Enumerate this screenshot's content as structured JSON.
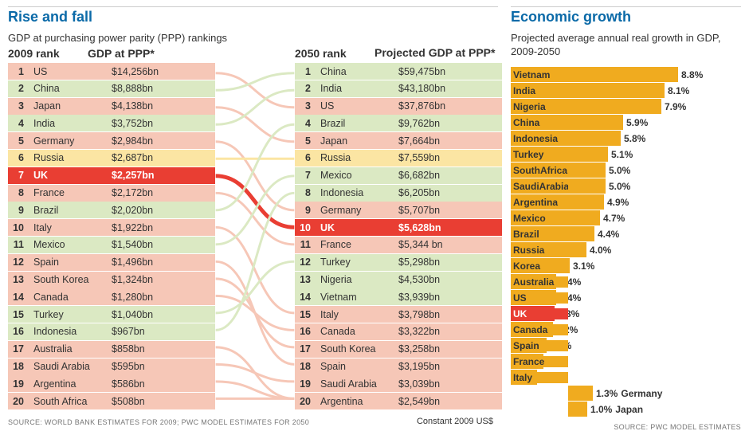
{
  "colors": {
    "pink": "#f6c7b7",
    "green": "#dbe9c3",
    "yellow": "#fbe5a3",
    "red": "#e93e33",
    "orange": "#f0ab1f",
    "title": "#0b6aa8",
    "text": "#333333"
  },
  "left": {
    "title": "Rise and fall",
    "subtitle": "GDP at purchasing power parity (PPP) rankings",
    "head2009_rank": "2009 rank",
    "head2009_gdp": "GDP at PPP*",
    "head2050_rank": "2050 rank",
    "head2050_gdp": "Projected GDP at PPP*",
    "footnote": "SOURCE: WORLD BANK ESTIMATES FOR 2009; PWC MODEL ESTIMATES FOR 2050",
    "constant": "Constant 2009 US$",
    "rows2009": [
      {
        "rank": 1,
        "country": "US",
        "gdp": "$14,256bn",
        "color": "pink",
        "to": 3
      },
      {
        "rank": 2,
        "country": "China",
        "gdp": "$8,888bn",
        "color": "green",
        "to": 1
      },
      {
        "rank": 3,
        "country": "Japan",
        "gdp": "$4,138bn",
        "color": "pink",
        "to": 5
      },
      {
        "rank": 4,
        "country": "India",
        "gdp": "$3,752bn",
        "color": "green",
        "to": 2
      },
      {
        "rank": 5,
        "country": "Germany",
        "gdp": "$2,984bn",
        "color": "pink",
        "to": 9
      },
      {
        "rank": 6,
        "country": "Russia",
        "gdp": "$2,687bn",
        "color": "yellow",
        "to": 6
      },
      {
        "rank": 7,
        "country": "UK",
        "gdp": "$2,257bn",
        "color": "red",
        "to": 10,
        "uk": true
      },
      {
        "rank": 8,
        "country": "France",
        "gdp": "$2,172bn",
        "color": "pink",
        "to": 11
      },
      {
        "rank": 9,
        "country": "Brazil",
        "gdp": "$2,020bn",
        "color": "green",
        "to": 4
      },
      {
        "rank": 10,
        "country": "Italy",
        "gdp": "$1,922bn",
        "color": "pink",
        "to": 15
      },
      {
        "rank": 11,
        "country": "Mexico",
        "gdp": "$1,540bn",
        "color": "green",
        "to": 7
      },
      {
        "rank": 12,
        "country": "Spain",
        "gdp": "$1,496bn",
        "color": "pink",
        "to": 18
      },
      {
        "rank": 13,
        "country": "South Korea",
        "gdp": "$1,324bn",
        "color": "pink",
        "to": 17
      },
      {
        "rank": 14,
        "country": "Canada",
        "gdp": "$1,280bn",
        "color": "pink",
        "to": 16
      },
      {
        "rank": 15,
        "country": "Turkey",
        "gdp": "$1,040bn",
        "color": "green",
        "to": 12
      },
      {
        "rank": 16,
        "country": "Indonesia",
        "gdp": "$967bn",
        "color": "green",
        "to": 8
      },
      {
        "rank": 17,
        "country": "Australia",
        "gdp": "$858bn",
        "color": "pink",
        "to": 20
      },
      {
        "rank": 18,
        "country": "Saudi Arabia",
        "gdp": "$595bn",
        "color": "pink",
        "to": 19
      },
      {
        "rank": 19,
        "country": "Argentina",
        "gdp": "$586bn",
        "color": "pink",
        "to": 20
      },
      {
        "rank": 20,
        "country": "South Africa",
        "gdp": "$508bn",
        "color": "pink",
        "to": 20
      }
    ],
    "rows2050": [
      {
        "rank": 1,
        "country": "China",
        "gdp": "$59,475bn",
        "color": "green"
      },
      {
        "rank": 2,
        "country": "India",
        "gdp": "$43,180bn",
        "color": "green"
      },
      {
        "rank": 3,
        "country": "US",
        "gdp": "$37,876bn",
        "color": "pink"
      },
      {
        "rank": 4,
        "country": "Brazil",
        "gdp": "$9,762bn",
        "color": "green"
      },
      {
        "rank": 5,
        "country": "Japan",
        "gdp": "$7,664bn",
        "color": "pink"
      },
      {
        "rank": 6,
        "country": "Russia",
        "gdp": "$7,559bn",
        "color": "yellow"
      },
      {
        "rank": 7,
        "country": "Mexico",
        "gdp": "$6,682bn",
        "color": "green"
      },
      {
        "rank": 8,
        "country": "Indonesia",
        "gdp": "$6,205bn",
        "color": "green"
      },
      {
        "rank": 9,
        "country": "Germany",
        "gdp": "$5,707bn",
        "color": "pink"
      },
      {
        "rank": 10,
        "country": "UK",
        "gdp": "$5,628bn",
        "color": "red",
        "uk": true
      },
      {
        "rank": 11,
        "country": "France",
        "gdp": "$5,344 bn",
        "color": "pink"
      },
      {
        "rank": 12,
        "country": "Turkey",
        "gdp": "$5,298bn",
        "color": "green"
      },
      {
        "rank": 13,
        "country": "Nigeria",
        "gdp": "$4,530bn",
        "color": "green"
      },
      {
        "rank": 14,
        "country": "Vietnam",
        "gdp": "$3,939bn",
        "color": "green"
      },
      {
        "rank": 15,
        "country": "Italy",
        "gdp": "$3,798bn",
        "color": "pink"
      },
      {
        "rank": 16,
        "country": "Canada",
        "gdp": "$3,322bn",
        "color": "pink"
      },
      {
        "rank": 17,
        "country": "South Korea",
        "gdp": "$3,258bn",
        "color": "pink"
      },
      {
        "rank": 18,
        "country": "Spain",
        "gdp": "$3,195bn",
        "color": "pink"
      },
      {
        "rank": 19,
        "country": "Saudi Arabia",
        "gdp": "$3,039bn",
        "color": "pink"
      },
      {
        "rank": 20,
        "country": "Argentina",
        "gdp": "$2,549bn",
        "color": "pink"
      }
    ]
  },
  "right": {
    "title": "Economic growth",
    "subtitle": "Projected average annual real growth in GDP, 2009-2050",
    "footnote": "SOURCE: PWC MODEL ESTIMATES",
    "max": 8.8,
    "rows": [
      {
        "country": "Vietnam",
        "value": 8.8,
        "label": "8.8%",
        "color": "orange"
      },
      {
        "country": "India",
        "value": 8.1,
        "label": "8.1%",
        "color": "orange"
      },
      {
        "country": "Nigeria",
        "value": 7.9,
        "label": "7.9%",
        "color": "orange"
      },
      {
        "country": "China",
        "value": 5.9,
        "label": "5.9%",
        "color": "orange"
      },
      {
        "country": "Indonesia",
        "value": 5.8,
        "label": "5.8%",
        "color": "orange"
      },
      {
        "country": "Turkey",
        "value": 5.1,
        "label": "5.1%",
        "color": "orange"
      },
      {
        "country": "SouthAfrica",
        "value": 5.0,
        "label": "5.0%",
        "color": "orange"
      },
      {
        "country": "SaudiArabia",
        "value": 5.0,
        "label": "5.0%",
        "color": "orange"
      },
      {
        "country": "Argentina",
        "value": 4.9,
        "label": "4.9%",
        "color": "orange"
      },
      {
        "country": "Mexico",
        "value": 4.7,
        "label": "4.7%",
        "color": "orange"
      },
      {
        "country": "Brazil",
        "value": 4.4,
        "label": "4.4%",
        "color": "orange"
      },
      {
        "country": "Russia",
        "value": 4.0,
        "label": "4.0%",
        "color": "orange"
      },
      {
        "country": "Korea",
        "value": 3.1,
        "label": "3.1%",
        "color": "orange"
      },
      {
        "country": "Australia",
        "value": 2.4,
        "label": "2.4%",
        "color": "orange"
      },
      {
        "country": "US",
        "value": 2.4,
        "label": "2.4%",
        "color": "orange"
      },
      {
        "country": "UK",
        "value": 2.3,
        "label": "2.3%",
        "color": "red",
        "uk": true
      },
      {
        "country": "Canada",
        "value": 2.2,
        "label": "2.2%",
        "color": "orange"
      },
      {
        "country": "Spain",
        "value": 1.9,
        "label": "1.9%",
        "color": "orange"
      },
      {
        "country": "France",
        "value": 1.7,
        "label": "1.7%",
        "color": "orange"
      },
      {
        "country": "Italy",
        "value": 1.4,
        "label": "1.4%",
        "color": "orange"
      },
      {
        "country": "",
        "after": "Germany",
        "value": 1.3,
        "label": "1.3%",
        "color": "orange"
      },
      {
        "country": "",
        "after": "Japan",
        "value": 1.0,
        "label": "1.0%",
        "color": "orange"
      }
    ]
  }
}
